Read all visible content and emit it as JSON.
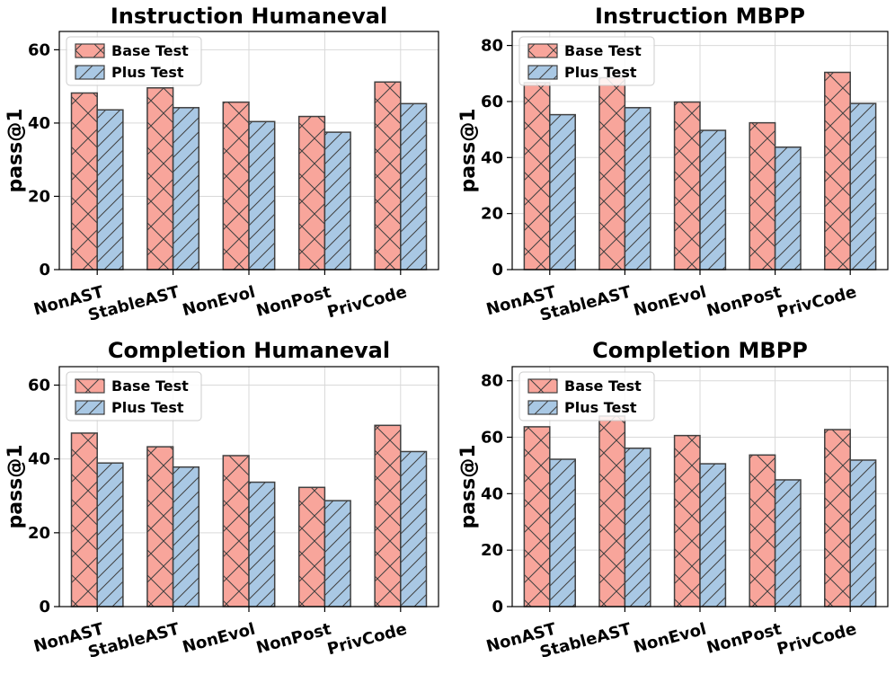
{
  "colors": {
    "base": "#f8a59b",
    "plus": "#a9c8e4",
    "edge": "#404040",
    "grid": "#d9d9d9"
  },
  "chart_data": [
    {
      "type": "bar",
      "title": "Instruction Humaneval",
      "ylabel": "pass@1",
      "xlabel": "",
      "ylim": [
        0,
        65
      ],
      "yticks": [
        0,
        20,
        40,
        60
      ],
      "categories": [
        "NonAST",
        "StableAST",
        "NonEvol",
        "NonPost",
        "PrivCode"
      ],
      "series": [
        {
          "name": "Base Test",
          "hatch": "cross",
          "values": [
            48.2,
            49.6,
            45.7,
            41.8,
            51.2
          ]
        },
        {
          "name": "Plus Test",
          "hatch": "diagonal",
          "values": [
            43.6,
            44.2,
            40.4,
            37.5,
            45.3
          ]
        }
      ],
      "legend": "top-left",
      "grid": true
    },
    {
      "type": "bar",
      "title": "Instruction MBPP",
      "ylabel": "pass@1",
      "xlabel": "",
      "ylim": [
        0,
        85
      ],
      "yticks": [
        0,
        20,
        40,
        60,
        80
      ],
      "categories": [
        "NonAST",
        "StableAST",
        "NonEvol",
        "NonPost",
        "PrivCode"
      ],
      "series": [
        {
          "name": "Base Test",
          "hatch": "cross",
          "values": [
            66.7,
            68.5,
            59.8,
            52.4,
            70.4
          ]
        },
        {
          "name": "Plus Test",
          "hatch": "diagonal",
          "values": [
            55.3,
            57.8,
            49.7,
            43.7,
            59.3
          ]
        }
      ],
      "legend": "top-left",
      "grid": true
    },
    {
      "type": "bar",
      "title": "Completion Humaneval",
      "ylabel": "pass@1",
      "xlabel": "",
      "ylim": [
        0,
        65
      ],
      "yticks": [
        0,
        20,
        40,
        60
      ],
      "categories": [
        "NonAST",
        "StableAST",
        "NonEvol",
        "NonPost",
        "PrivCode"
      ],
      "series": [
        {
          "name": "Base Test",
          "hatch": "cross",
          "values": [
            47.0,
            43.3,
            40.9,
            32.3,
            49.1
          ]
        },
        {
          "name": "Plus Test",
          "hatch": "diagonal",
          "values": [
            38.9,
            37.8,
            33.7,
            28.7,
            42.0
          ]
        }
      ],
      "legend": "top-left",
      "grid": true
    },
    {
      "type": "bar",
      "title": "Completion MBPP",
      "ylabel": "pass@1",
      "xlabel": "",
      "ylim": [
        0,
        85
      ],
      "yticks": [
        0,
        20,
        40,
        60,
        80
      ],
      "categories": [
        "NonAST",
        "StableAST",
        "NonEvol",
        "NonPost",
        "PrivCode"
      ],
      "series": [
        {
          "name": "Base Test",
          "hatch": "cross",
          "values": [
            63.7,
            67.5,
            60.6,
            53.7,
            62.7
          ]
        },
        {
          "name": "Plus Test",
          "hatch": "diagonal",
          "values": [
            52.2,
            56.1,
            50.6,
            44.9,
            51.9
          ]
        }
      ],
      "legend": "top-left",
      "grid": true
    }
  ]
}
